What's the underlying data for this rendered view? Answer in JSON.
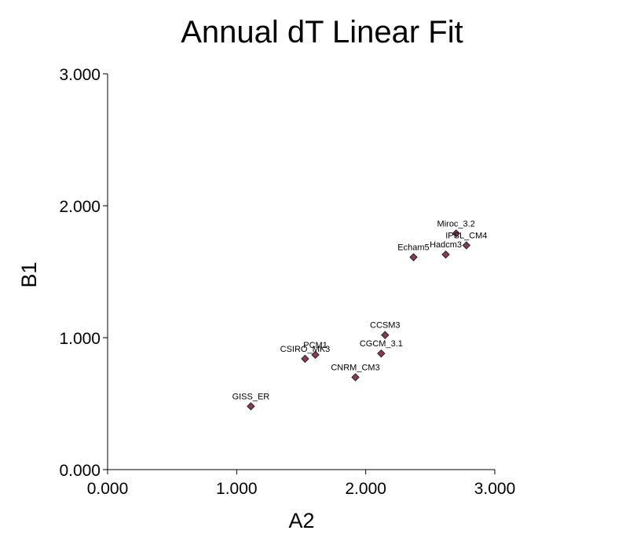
{
  "chart_data": {
    "type": "scatter",
    "title": "Annual dT Linear Fit",
    "xlabel": "A2",
    "ylabel": "B1",
    "xlim": [
      0,
      3
    ],
    "ylim": [
      0,
      3
    ],
    "x_ticks": [
      "0.000",
      "1.000",
      "2.000",
      "3.000"
    ],
    "y_ticks": [
      "0.000",
      "1.000",
      "2.000",
      "3.000"
    ],
    "grid": false,
    "marker_color": "#8b3a5e",
    "points": [
      {
        "label": "GISS_ER",
        "x": 1.11,
        "y": 0.48
      },
      {
        "label": "CSIRO_MK3",
        "x": 1.53,
        "y": 0.84
      },
      {
        "label": "PCM1",
        "x": 1.61,
        "y": 0.87
      },
      {
        "label": "CNRM_CM3",
        "x": 1.92,
        "y": 0.7
      },
      {
        "label": "CGCM_3.1",
        "x": 2.12,
        "y": 0.88
      },
      {
        "label": "CCSM3",
        "x": 2.15,
        "y": 1.02
      },
      {
        "label": "Echam5",
        "x": 2.37,
        "y": 1.61
      },
      {
        "label": "Hadcm3",
        "x": 2.62,
        "y": 1.63
      },
      {
        "label": "Miroc_3.2",
        "x": 2.7,
        "y": 1.79
      },
      {
        "label": "IPSL_CM4",
        "x": 2.78,
        "y": 1.7
      }
    ]
  }
}
